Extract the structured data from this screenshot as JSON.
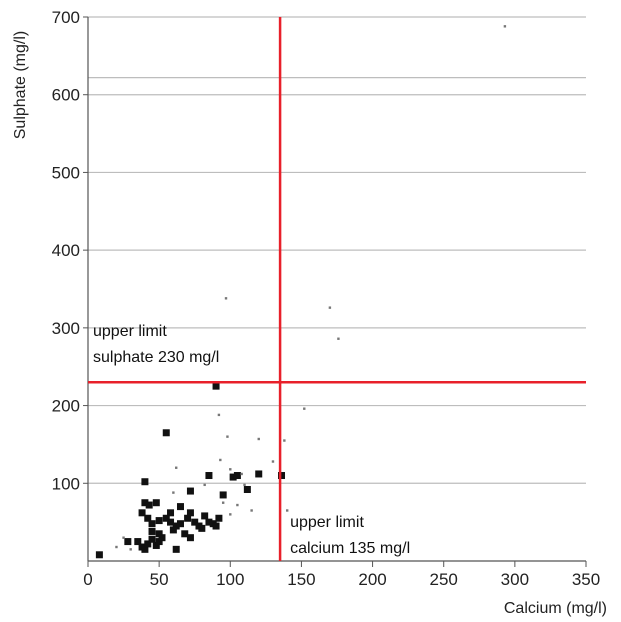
{
  "chart_data": {
    "type": "scatter",
    "title": "",
    "xlabel": "Calcium (mg/l)",
    "ylabel": "Sulphate (mg/l)",
    "xlim": [
      0,
      350
    ],
    "ylim": [
      0,
      700
    ],
    "x_ticks": [
      "0",
      "50",
      "100",
      "150",
      "200",
      "250",
      "300",
      "350"
    ],
    "y_ticks": [
      "100",
      "200",
      "300",
      "400",
      "500",
      "600",
      "700"
    ],
    "grid": "horizontal",
    "colors": {
      "points": "#111111",
      "limit_lines": "#e8202a",
      "grid": "#bdbdbd"
    },
    "limits": [
      {
        "axis": "x",
        "value": 135,
        "label_lines": [
          "upper limit",
          "calcium 135 mg/l"
        ]
      },
      {
        "axis": "y",
        "value": 230,
        "label_lines": [
          "upper limit",
          "sulphate 230 mg/l"
        ]
      }
    ],
    "series": [
      {
        "marker": "large-square",
        "points": [
          [
            8,
            8
          ],
          [
            40,
            102
          ],
          [
            40,
            75
          ],
          [
            43,
            72
          ],
          [
            48,
            75
          ],
          [
            38,
            62
          ],
          [
            42,
            55
          ],
          [
            45,
            48
          ],
          [
            50,
            52
          ],
          [
            55,
            55
          ],
          [
            58,
            50
          ],
          [
            62,
            45
          ],
          [
            65,
            48
          ],
          [
            70,
            55
          ],
          [
            72,
            62
          ],
          [
            75,
            50
          ],
          [
            78,
            45
          ],
          [
            60,
            40
          ],
          [
            68,
            35
          ],
          [
            72,
            30
          ],
          [
            80,
            42
          ],
          [
            85,
            50
          ],
          [
            88,
            48
          ],
          [
            90,
            45
          ],
          [
            92,
            55
          ],
          [
            95,
            85
          ],
          [
            85,
            110
          ],
          [
            102,
            108
          ],
          [
            105,
            110
          ],
          [
            112,
            92
          ],
          [
            120,
            112
          ],
          [
            136,
            110
          ],
          [
            72,
            90
          ],
          [
            55,
            165
          ],
          [
            90,
            225
          ],
          [
            35,
            25
          ],
          [
            38,
            18
          ],
          [
            40,
            15
          ],
          [
            42,
            22
          ],
          [
            45,
            28
          ],
          [
            48,
            20
          ],
          [
            50,
            25
          ],
          [
            52,
            30
          ],
          [
            28,
            25
          ],
          [
            45,
            38
          ],
          [
            62,
            15
          ],
          [
            50,
            35
          ],
          [
            58,
            62
          ],
          [
            82,
            58
          ],
          [
            65,
            70
          ]
        ]
      },
      {
        "marker": "small-dot",
        "points": [
          [
            293,
            688
          ],
          [
            97,
            338
          ],
          [
            170,
            326
          ],
          [
            176,
            286
          ],
          [
            152,
            196
          ],
          [
            92,
            188
          ],
          [
            138,
            155
          ],
          [
            120,
            157
          ],
          [
            98,
            160
          ],
          [
            130,
            128
          ],
          [
            93,
            130
          ],
          [
            100,
            118
          ],
          [
            62,
            120
          ],
          [
            110,
            98
          ],
          [
            140,
            65
          ],
          [
            115,
            65
          ],
          [
            105,
            72
          ],
          [
            100,
            60
          ],
          [
            95,
            75
          ],
          [
            60,
            88
          ],
          [
            30,
            15
          ],
          [
            25,
            30
          ],
          [
            20,
            18
          ],
          [
            108,
            112
          ],
          [
            82,
            98
          ]
        ]
      }
    ]
  }
}
